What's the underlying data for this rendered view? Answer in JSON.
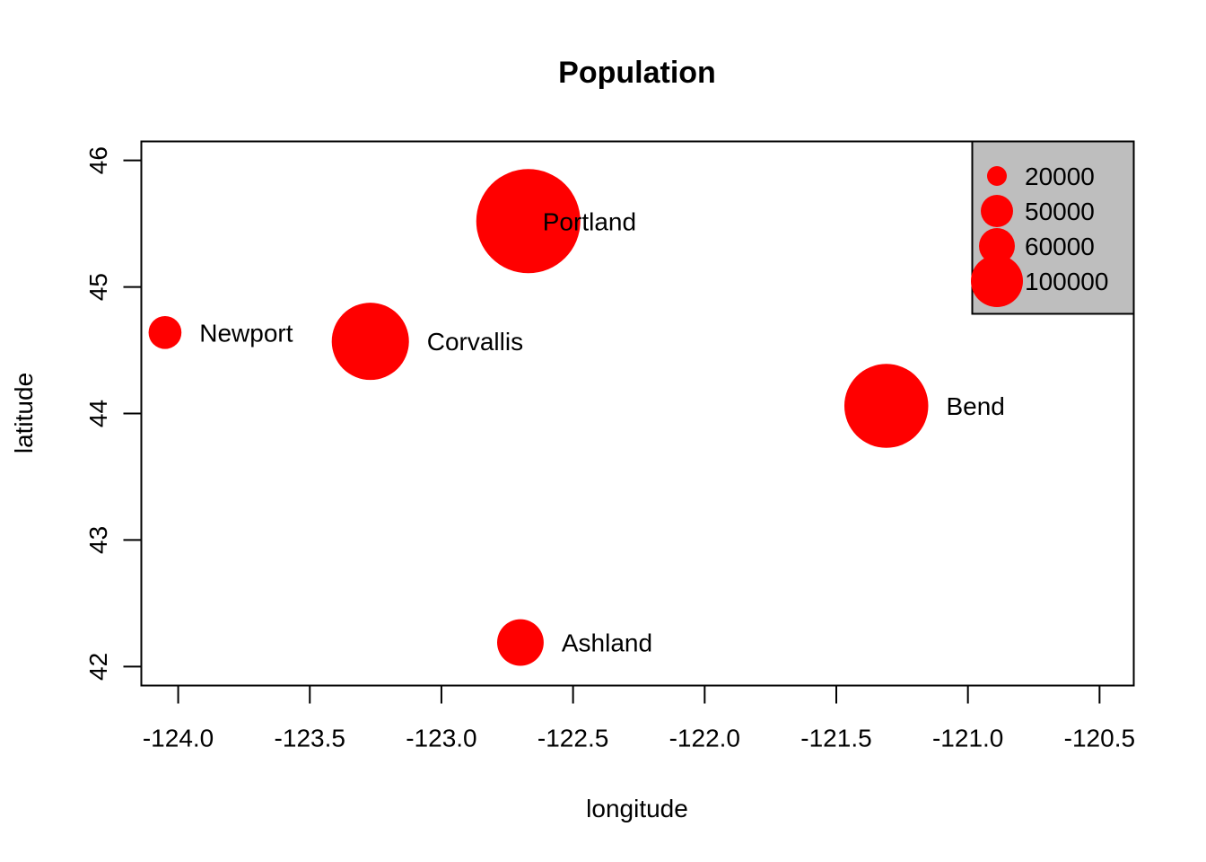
{
  "chart_data": {
    "type": "scatter",
    "title": "Population",
    "xlabel": "longitude",
    "ylabel": "latitude",
    "xlim": [
      -124.14,
      -120.37
    ],
    "ylim": [
      41.85,
      46.15
    ],
    "x_ticks": [
      -124.0,
      -123.5,
      -123.0,
      -122.5,
      -122.0,
      -121.5,
      -121.0,
      -120.5
    ],
    "x_tick_labels": [
      "-124.0",
      "-123.5",
      "-123.0",
      "-122.5",
      "-122.0",
      "-121.5",
      "-121.0",
      "-120.5"
    ],
    "y_ticks": [
      42,
      43,
      44,
      45,
      46
    ],
    "y_tick_labels": [
      "42",
      "43",
      "44",
      "45",
      "46"
    ],
    "grid": false,
    "point_color": "#ff0000",
    "legend_background": "#bebebe",
    "legend_position": "top-right",
    "points": [
      {
        "label": "Portland",
        "x": -122.67,
        "y": 45.52,
        "population": 100000,
        "label_inside": true
      },
      {
        "label": "Newport",
        "x": -124.05,
        "y": 44.64,
        "population": 10000
      },
      {
        "label": "Corvallis",
        "x": -123.27,
        "y": 44.57,
        "population": 55000
      },
      {
        "label": "Bend",
        "x": -121.31,
        "y": 44.06,
        "population": 65000
      },
      {
        "label": "Ashland",
        "x": -122.7,
        "y": 42.19,
        "population": 20000
      }
    ],
    "legend": [
      {
        "label": "20000",
        "population": 20000
      },
      {
        "label": "50000",
        "population": 50000
      },
      {
        "label": "60000",
        "population": 60000
      },
      {
        "label": "100000",
        "population": 100000
      }
    ]
  }
}
